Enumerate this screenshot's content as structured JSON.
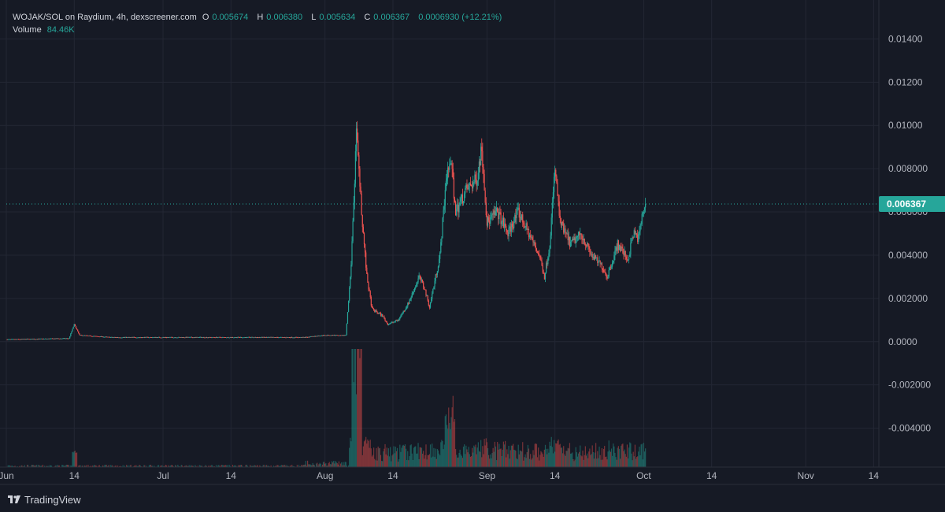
{
  "legend": {
    "pair": "WOJAK/SOL on Raydium, 4h, dexscreener.com",
    "o_label": "O",
    "o_value": "0.005674",
    "h_label": "H",
    "h_value": "0.006380",
    "l_label": "L",
    "l_value": "0.005634",
    "c_label": "C",
    "c_value": "0.006367",
    "change": "0.0006930 (+12.21%)",
    "volume_label": "Volume",
    "volume_value": "84.46K"
  },
  "last_price": "0.006367",
  "brand": "TradingView",
  "colors": {
    "up": "#26a69a",
    "down": "#ef5350",
    "bg": "#161a25",
    "grid": "#232734",
    "axis_text": "#b2b5be"
  },
  "chart_data": {
    "type": "candlestick",
    "timeframe": "4h",
    "y_ticks": [
      "0.01400",
      "0.01200",
      "0.01000",
      "0.008000",
      "0.006000",
      "0.004000",
      "0.002000",
      "0.0000",
      "-0.002000",
      "-0.004000"
    ],
    "y_tick_values": [
      0.014,
      0.012,
      0.01,
      0.008,
      0.006,
      0.004,
      0.002,
      0.0,
      -0.002,
      -0.004
    ],
    "ylim": [
      -0.0058,
      0.0158
    ],
    "x_ticks": [
      "Jun",
      "14",
      "Jul",
      "14",
      "Aug",
      "14",
      "Sep",
      "14",
      "Oct",
      "14",
      "Nov",
      "14"
    ],
    "x_tick_days": [
      0,
      13,
      30,
      43,
      61,
      74,
      92,
      105,
      122,
      135,
      153,
      166
    ],
    "x_range_days": [
      0,
      167
    ],
    "grid": true,
    "price_keypoints": [
      [
        0,
        0.0001
      ],
      [
        12,
        0.00015
      ],
      [
        13,
        0.0008
      ],
      [
        14,
        0.0003
      ],
      [
        20,
        0.0002
      ],
      [
        40,
        0.0002
      ],
      [
        57,
        0.0002
      ],
      [
        61,
        0.0003
      ],
      [
        65,
        0.0003
      ],
      [
        66,
        0.0035
      ],
      [
        67,
        0.0095
      ],
      [
        68,
        0.006
      ],
      [
        69,
        0.003
      ],
      [
        70,
        0.0015
      ],
      [
        72,
        0.0012
      ],
      [
        73,
        0.0008
      ],
      [
        75,
        0.001
      ],
      [
        77,
        0.0018
      ],
      [
        79,
        0.003
      ],
      [
        80,
        0.0025
      ],
      [
        81,
        0.0016
      ],
      [
        83,
        0.004
      ],
      [
        84,
        0.007
      ],
      [
        85,
        0.0085
      ],
      [
        86,
        0.006
      ],
      [
        88,
        0.007
      ],
      [
        90,
        0.0075
      ],
      [
        91,
        0.009
      ],
      [
        92,
        0.0055
      ],
      [
        94,
        0.006
      ],
      [
        96,
        0.005
      ],
      [
        98,
        0.006
      ],
      [
        100,
        0.005
      ],
      [
        102,
        0.004
      ],
      [
        103,
        0.003
      ],
      [
        104,
        0.0045
      ],
      [
        105,
        0.008
      ],
      [
        106,
        0.0055
      ],
      [
        108,
        0.0045
      ],
      [
        110,
        0.005
      ],
      [
        112,
        0.004
      ],
      [
        114,
        0.0035
      ],
      [
        115,
        0.003
      ],
      [
        117,
        0.0045
      ],
      [
        119,
        0.0038
      ],
      [
        120,
        0.005
      ],
      [
        121,
        0.0048
      ],
      [
        122,
        0.0062
      ],
      [
        122.5,
        0.00637
      ]
    ],
    "last_value": 0.006367,
    "volume_last": "84.46K"
  }
}
